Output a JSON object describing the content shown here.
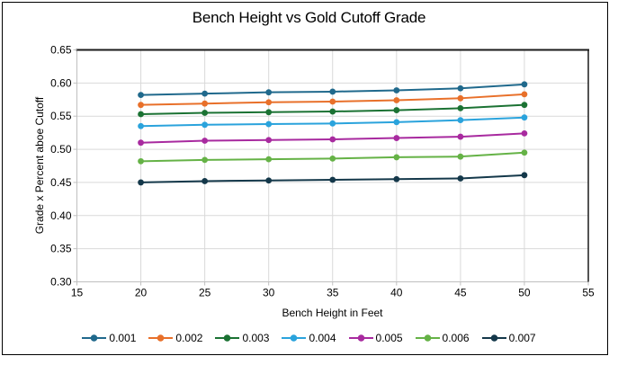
{
  "frame": {
    "border_color": "#000000",
    "background": "#ffffff"
  },
  "chart_data": {
    "type": "line",
    "title": "Bench Height vs Gold Cutoff Grade",
    "xlabel": "Bench Height in Feet",
    "ylabel": "Grade x Percent aboe Cutoff",
    "xlim": [
      15,
      55
    ],
    "ylim": [
      0.3,
      0.65
    ],
    "x_ticks": [
      15,
      20,
      25,
      30,
      35,
      40,
      45,
      50,
      55
    ],
    "y_ticks": [
      0.3,
      0.35,
      0.4,
      0.45,
      0.5,
      0.55,
      0.6,
      0.65
    ],
    "grid": true,
    "legend_position": "bottom",
    "grid_color": "#d9d9d9",
    "axis_line_color": "#bfbfbf",
    "plot_border_color": "#1a1a1a",
    "x": [
      20,
      25,
      30,
      35,
      40,
      45,
      50
    ],
    "series": [
      {
        "name": "0.001",
        "color": "#20698c",
        "values": [
          0.582,
          0.584,
          0.586,
          0.587,
          0.589,
          0.592,
          0.598
        ]
      },
      {
        "name": "0.002",
        "color": "#e8702a",
        "values": [
          0.567,
          0.569,
          0.571,
          0.572,
          0.574,
          0.577,
          0.583
        ]
      },
      {
        "name": "0.003",
        "color": "#1b7233",
        "values": [
          0.553,
          0.555,
          0.556,
          0.557,
          0.559,
          0.562,
          0.567
        ]
      },
      {
        "name": "0.004",
        "color": "#2aa3dc",
        "values": [
          0.535,
          0.537,
          0.538,
          0.539,
          0.541,
          0.544,
          0.548
        ]
      },
      {
        "name": "0.005",
        "color": "#a82a9f",
        "values": [
          0.51,
          0.513,
          0.514,
          0.515,
          0.517,
          0.519,
          0.524
        ]
      },
      {
        "name": "0.006",
        "color": "#65b246",
        "values": [
          0.482,
          0.484,
          0.485,
          0.486,
          0.488,
          0.489,
          0.495
        ]
      },
      {
        "name": "0.007",
        "color": "#14384a",
        "values": [
          0.45,
          0.452,
          0.453,
          0.454,
          0.455,
          0.456,
          0.461
        ]
      }
    ]
  }
}
